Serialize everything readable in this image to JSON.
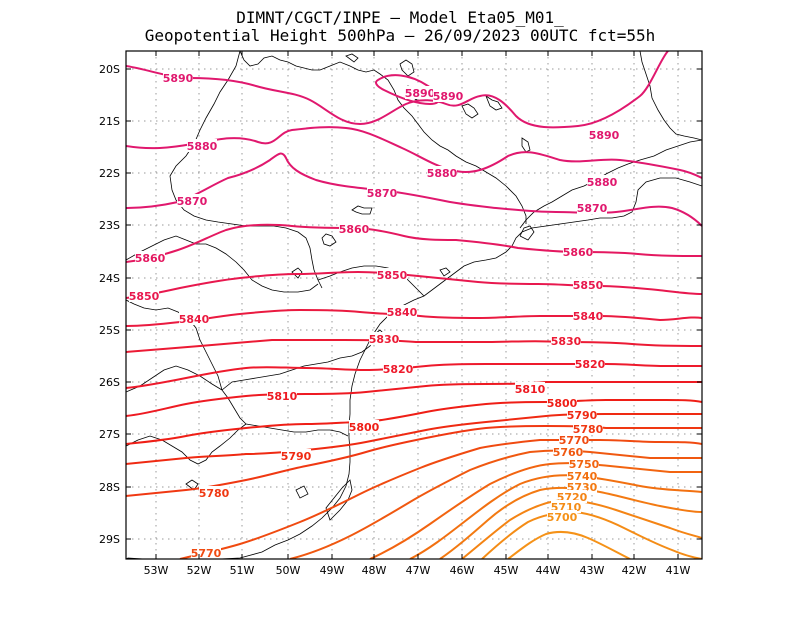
{
  "title": {
    "line1": "DIMNT/CGCT/INPE  —   Model Eta05_M01_",
    "line2": "Geopotential Height 500hPa —   26/09/2023 00UTC fct=55h"
  },
  "map": {
    "lon_range": [
      -53.8,
      -40.5
    ],
    "lat_range": [
      -29.4,
      -19.8
    ],
    "lat_labels": [
      "20S",
      "21S",
      "22S",
      "23S",
      "24S",
      "25S",
      "26S",
      "27S",
      "28S",
      "29S"
    ],
    "lon_labels": [
      "53W",
      "52W",
      "51W",
      "50W",
      "49W",
      "48W",
      "47W",
      "46W",
      "45W",
      "44W",
      "43W",
      "42W",
      "41W"
    ],
    "colors": {
      "coast": "#000000",
      "grid": "#9a9a9a",
      "high": "#e0186e",
      "mid": "#ee1a2c",
      "low": "#f05a10",
      "lowest": "#f59018"
    }
  },
  "contours": [
    {
      "value": "5890",
      "color": "#e0186e"
    },
    {
      "value": "5880",
      "color": "#e0186e"
    },
    {
      "value": "5870",
      "color": "#e0186e"
    },
    {
      "value": "5860",
      "color": "#e41860"
    },
    {
      "value": "5850",
      "color": "#e8184e"
    },
    {
      "value": "5840",
      "color": "#ea1a40"
    },
    {
      "value": "5830",
      "color": "#ec1a34"
    },
    {
      "value": "5820",
      "color": "#ee1a2c"
    },
    {
      "value": "5810",
      "color": "#ee1a22"
    },
    {
      "value": "5800",
      "color": "#ef1e16"
    },
    {
      "value": "5790",
      "color": "#ef2a12"
    },
    {
      "value": "5780",
      "color": "#f03812"
    },
    {
      "value": "5770",
      "color": "#f04a10"
    },
    {
      "value": "5760",
      "color": "#f05810"
    },
    {
      "value": "5750",
      "color": "#f26410"
    },
    {
      "value": "5740",
      "color": "#f27010"
    },
    {
      "value": "5730",
      "color": "#f37a12"
    },
    {
      "value": "5720",
      "color": "#f48414"
    },
    {
      "value": "5710",
      "color": "#f48c16"
    },
    {
      "value": "5700",
      "color": "#f59218"
    }
  ]
}
